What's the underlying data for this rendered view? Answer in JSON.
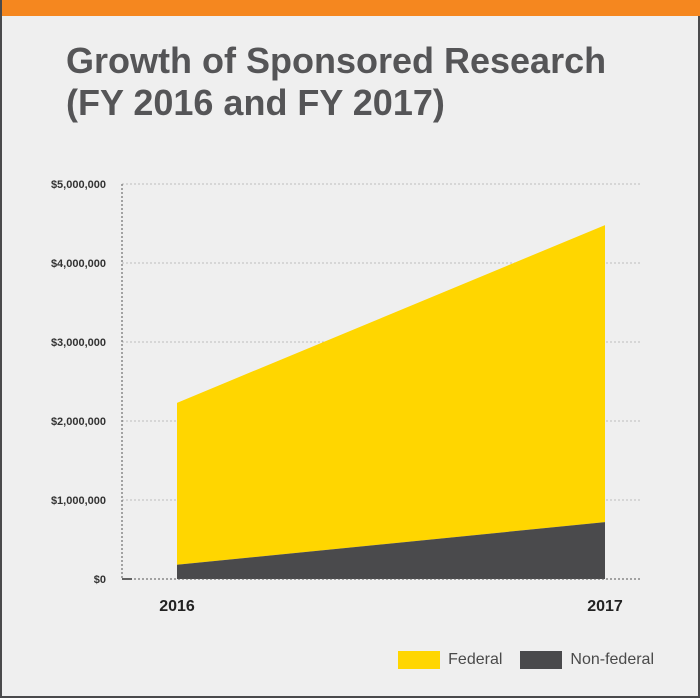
{
  "title": {
    "line1": "Growth of Sponsored Research",
    "line2": "(FY 2016 and FY 2017)"
  },
  "colors": {
    "top_bar": "#f5871f",
    "federal": "#ffd600",
    "non_federal": "#4a4a4c"
  },
  "chart_data": {
    "type": "area",
    "stacked": true,
    "categories": [
      "2016",
      "2017"
    ],
    "series": [
      {
        "name": "Non-federal",
        "values": [
          180000,
          720000
        ]
      },
      {
        "name": "Federal",
        "values": [
          2050000,
          3760000
        ]
      }
    ],
    "ylim": [
      0,
      5000000
    ],
    "yticks": [
      0,
      1000000,
      2000000,
      3000000,
      4000000,
      5000000
    ],
    "ytick_labels": [
      "$0",
      "$1,000,000",
      "$2,000,000",
      "$3,000,000",
      "$4,000,000",
      "$5,000,000"
    ],
    "grid": true,
    "legend_position": "bottom-right",
    "xlabel": "",
    "ylabel": ""
  },
  "legend": {
    "federal_label": "Federal",
    "non_federal_label": "Non-federal"
  }
}
